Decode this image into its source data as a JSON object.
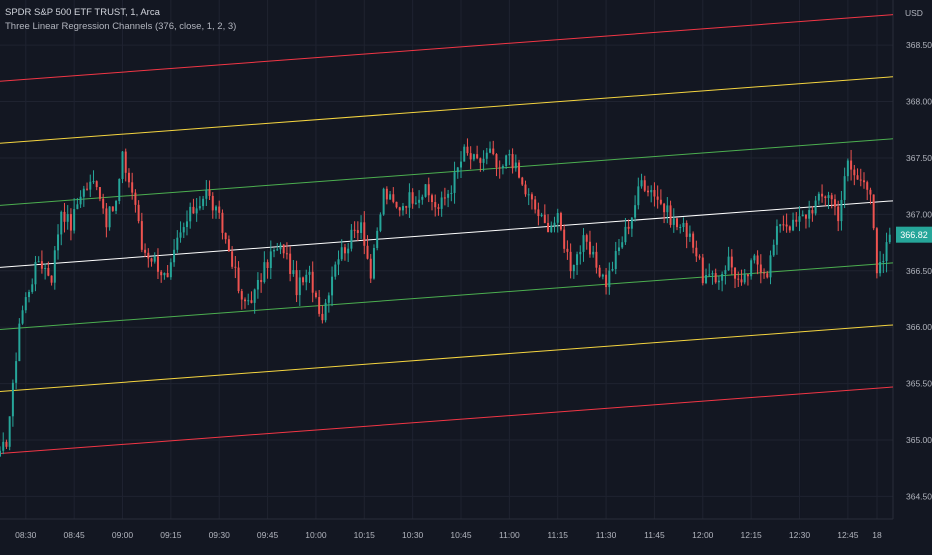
{
  "header": {
    "symbol_line": "SPDR S&P 500 ETF TRUST, 1, Arca",
    "indicator_line": "Three Linear Regression Channels (376, close, 1, 2, 3)",
    "currency": "USD"
  },
  "colors": {
    "background": "#131722",
    "grid": "#1f2330",
    "axis_text": "#b2b5be",
    "up_candle": "#26a69a",
    "down_candle": "#ef5350",
    "regression_center": "#ffffff",
    "channel_1": "#4caf50",
    "channel_2": "#f5d540",
    "channel_3": "#f23645",
    "price_label_bg": "#26a69a"
  },
  "chart_data": {
    "type": "candlestick",
    "x_axis": {
      "ticks": [
        "08:30",
        "08:45",
        "09:00",
        "09:15",
        "09:30",
        "09:45",
        "10:00",
        "10:15",
        "10:30",
        "10:45",
        "11:00",
        "11:15",
        "11:30",
        "11:45",
        "12:00",
        "12:15",
        "12:30",
        "12:45",
        "18"
      ],
      "time_range": [
        "08:22",
        "12:59"
      ]
    },
    "y_axis": {
      "unit": "USD",
      "range": [
        364.3,
        368.9
      ],
      "ticks": [
        "368.50",
        "368.00",
        "367.50",
        "367.00",
        "366.50",
        "366.00",
        "365.50",
        "365.00",
        "364.50"
      ]
    },
    "grid": true,
    "last_price": "366.82",
    "anchors": [
      [
        "08:22",
        364.85
      ],
      [
        "08:24",
        365.0
      ],
      [
        "08:26",
        365.45
      ],
      [
        "08:28",
        366.05
      ],
      [
        "08:31",
        366.35
      ],
      [
        "08:34",
        366.6
      ],
      [
        "08:38",
        366.45
      ],
      [
        "08:41",
        367.05
      ],
      [
        "08:44",
        366.9
      ],
      [
        "08:47",
        367.2
      ],
      [
        "08:52",
        367.3
      ],
      [
        "08:55",
        366.95
      ],
      [
        "08:58",
        367.1
      ],
      [
        "09:00",
        367.5
      ],
      [
        "09:04",
        367.1
      ],
      [
        "09:06",
        366.7
      ],
      [
        "09:10",
        366.6
      ],
      [
        "09:14",
        366.4
      ],
      [
        "09:17",
        366.75
      ],
      [
        "09:21",
        367.0
      ],
      [
        "09:26",
        367.2
      ],
      [
        "09:30",
        366.95
      ],
      [
        "09:34",
        366.6
      ],
      [
        "09:37",
        366.2
      ],
      [
        "09:41",
        366.3
      ],
      [
        "09:46",
        366.65
      ],
      [
        "09:50",
        366.7
      ],
      [
        "09:54",
        366.35
      ],
      [
        "09:58",
        366.45
      ],
      [
        "10:02",
        366.1
      ],
      [
        "10:06",
        366.6
      ],
      [
        "10:10",
        366.75
      ],
      [
        "10:14",
        366.95
      ],
      [
        "10:17",
        366.45
      ],
      [
        "10:21",
        367.2
      ],
      [
        "10:25",
        367.05
      ],
      [
        "10:29",
        367.15
      ],
      [
        "10:34",
        367.2
      ],
      [
        "10:38",
        367.05
      ],
      [
        "10:42",
        367.25
      ],
      [
        "10:46",
        367.55
      ],
      [
        "10:50",
        367.45
      ],
      [
        "10:54",
        367.55
      ],
      [
        "10:57",
        367.35
      ],
      [
        "11:00",
        367.55
      ],
      [
        "11:04",
        367.25
      ],
      [
        "11:07",
        367.1
      ],
      [
        "11:11",
        366.9
      ],
      [
        "11:15",
        366.95
      ],
      [
        "11:19",
        366.55
      ],
      [
        "11:23",
        366.75
      ],
      [
        "11:26",
        366.6
      ],
      [
        "11:30",
        366.4
      ],
      [
        "11:34",
        366.7
      ],
      [
        "11:38",
        367.0
      ],
      [
        "11:41",
        367.3
      ],
      [
        "11:45",
        367.2
      ],
      [
        "11:48",
        367.05
      ],
      [
        "11:52",
        366.9
      ],
      [
        "11:56",
        366.85
      ],
      [
        "12:00",
        366.45
      ],
      [
        "12:04",
        366.4
      ],
      [
        "12:08",
        366.6
      ],
      [
        "12:12",
        366.35
      ],
      [
        "12:16",
        366.6
      ],
      [
        "12:20",
        366.5
      ],
      [
        "12:24",
        366.95
      ],
      [
        "12:28",
        366.9
      ],
      [
        "12:32",
        367.0
      ],
      [
        "12:35",
        367.1
      ],
      [
        "12:39",
        367.2
      ],
      [
        "12:42",
        367.0
      ],
      [
        "12:45",
        367.45
      ],
      [
        "12:48",
        367.3
      ],
      [
        "12:50",
        367.35
      ],
      [
        "12:52",
        367.2
      ],
      [
        "12:54",
        366.45
      ],
      [
        "12:56",
        366.6
      ],
      [
        "12:58",
        366.82
      ]
    ],
    "regression": {
      "time_range": [
        "08:22",
        "12:59"
      ],
      "center": [
        366.53,
        367.12
      ],
      "std_dev_multipliers": [
        1,
        2,
        3
      ],
      "offset_per_std": 0.55
    }
  }
}
